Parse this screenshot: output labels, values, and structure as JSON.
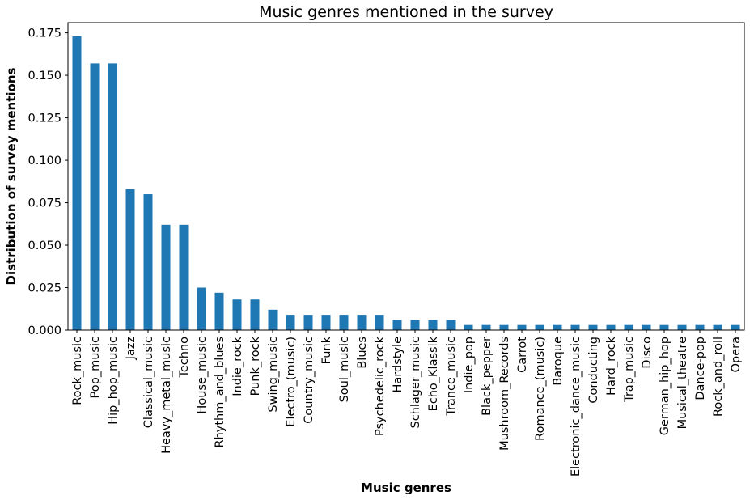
{
  "chart_data": {
    "type": "bar",
    "title": "Music genres mentioned in the survey",
    "xlabel": "Music genres",
    "ylabel": "Distribution of survey mentions",
    "ylim": [
      0,
      0.181
    ],
    "yticks": [
      "0.000",
      "0.025",
      "0.050",
      "0.075",
      "0.100",
      "0.125",
      "0.150",
      "0.175"
    ],
    "grid": false,
    "bar_color": "#1f77b4",
    "categories": [
      "Rock_music",
      "Pop_music",
      "Hip_hop_music",
      "Jazz",
      "Classical_music",
      "Heavy_metal_music",
      "Techno",
      "House_music",
      "Rhythm_and_blues",
      "Indie_rock",
      "Punk_rock",
      "Swing_music",
      "Electro_(music)",
      "Country_music",
      "Funk",
      "Soul_music",
      "Blues",
      "Psychedelic_rock",
      "Hardstyle",
      "Schlager_music",
      "Echo_Klassik",
      "Trance_music",
      "Indie_pop",
      "Black_pepper",
      "Mushroom_Records",
      "Carrot",
      "Romance_(music)",
      "Baroque",
      "Electronic_dance_music",
      "Conducting",
      "Hard_rock",
      "Trap_music",
      "Disco",
      "German_hip_hop",
      "Musical_theatre",
      "Dance-pop",
      "Rock_and_roll",
      "Opera"
    ],
    "values": [
      0.173,
      0.157,
      0.157,
      0.083,
      0.08,
      0.062,
      0.062,
      0.025,
      0.022,
      0.018,
      0.018,
      0.012,
      0.009,
      0.009,
      0.009,
      0.009,
      0.009,
      0.009,
      0.006,
      0.006,
      0.006,
      0.006,
      0.003,
      0.003,
      0.003,
      0.003,
      0.003,
      0.003,
      0.003,
      0.003,
      0.003,
      0.003,
      0.003,
      0.003,
      0.003,
      0.003,
      0.003,
      0.003
    ]
  }
}
